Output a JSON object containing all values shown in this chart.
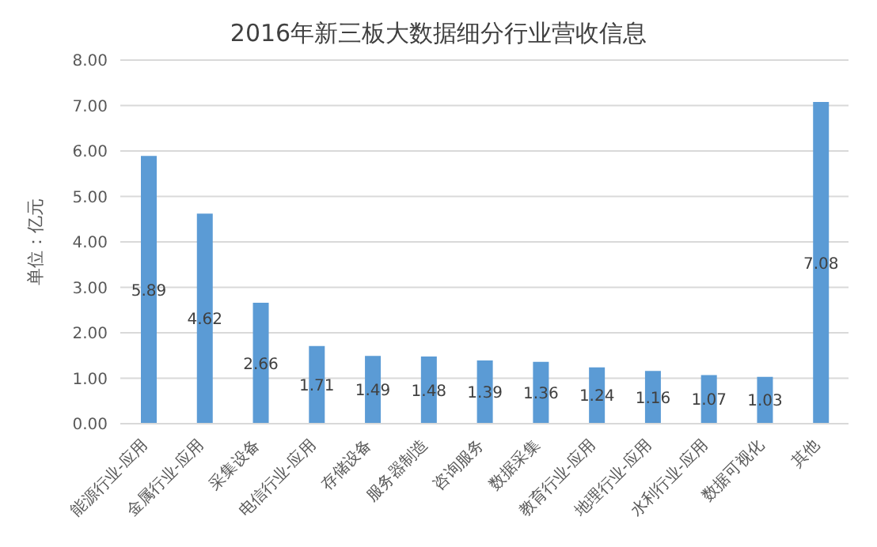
{
  "chart_data": {
    "type": "bar",
    "title": "2016年新三板大数据细分行业营收信息",
    "ylabel": "单位：亿元",
    "categories": [
      "能源行业-应用",
      "金属行业-应用",
      "采集设备",
      "电信行业-应用",
      "存储设备",
      "服务器制造",
      "咨询服务",
      "数据采集",
      "教育行业-应用",
      "地理行业-应用",
      "水利行业-应用",
      "数据可视化",
      "其他"
    ],
    "values": [
      5.89,
      4.62,
      2.66,
      1.71,
      1.49,
      1.48,
      1.39,
      1.36,
      1.24,
      1.16,
      1.07,
      1.03,
      7.08
    ],
    "color": "#5b9bd5",
    "data_labels": true,
    "grid": "y",
    "legend": false,
    "ylim": [
      0,
      8
    ],
    "yticks": [
      {
        "value": 0,
        "label": "0.00"
      },
      {
        "value": 1,
        "label": "1.00"
      },
      {
        "value": 2,
        "label": "2.00"
      },
      {
        "value": 3,
        "label": "3.00"
      },
      {
        "value": 4,
        "label": "4.00"
      },
      {
        "value": 5,
        "label": "5.00"
      },
      {
        "value": 6,
        "label": "6.00"
      },
      {
        "value": 7,
        "label": "7.00"
      },
      {
        "value": 8,
        "label": "8.00"
      }
    ]
  }
}
